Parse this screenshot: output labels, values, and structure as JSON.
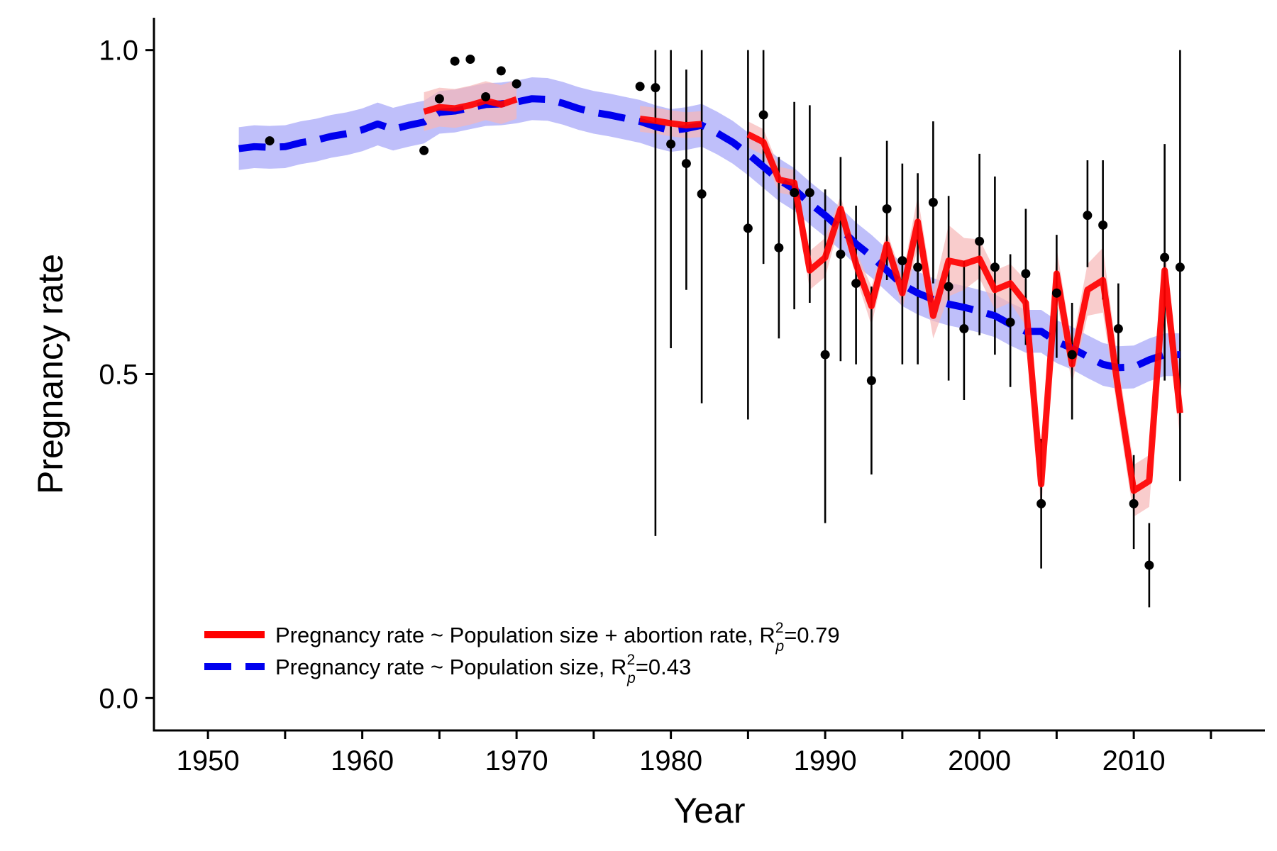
{
  "chart_data": {
    "type": "line",
    "title": "",
    "xlabel": "Year",
    "ylabel": "Pregnancy rate",
    "xlim": [
      1946.5,
      2018.5
    ],
    "ylim": [
      -0.05,
      1.05
    ],
    "x_ticks": [
      1950,
      1960,
      1970,
      1980,
      1990,
      2000,
      2010
    ],
    "x_tick_labels": [
      "1950",
      "1960",
      "1970",
      "1980",
      "1990",
      "2000",
      "2010"
    ],
    "x_minor_ticks": [
      1955,
      1965,
      1975,
      1985,
      1995,
      2005,
      2015
    ],
    "y_ticks": [
      0.0,
      0.5,
      1.0
    ],
    "y_tick_labels": [
      "0.0",
      "0.5",
      "1.0"
    ],
    "grid": false,
    "legend_position": "bottom-left",
    "colors": {
      "red": "#ff0000",
      "red_band": "#f7b7b7",
      "blue": "#0000ee",
      "blue_band": "#aaaaf8",
      "points": "#000000"
    },
    "observed": {
      "points": [
        {
          "x": 1954,
          "y": 0.86
        },
        {
          "x": 1964,
          "y": 0.845
        },
        {
          "x": 1965,
          "y": 0.925
        },
        {
          "x": 1966,
          "y": 0.983
        },
        {
          "x": 1967,
          "y": 0.986
        },
        {
          "x": 1968,
          "y": 0.928
        },
        {
          "x": 1969,
          "y": 0.968
        },
        {
          "x": 1970,
          "y": 0.948
        },
        {
          "x": 1978,
          "y": 0.944
        },
        {
          "x": 1979,
          "y": 0.942,
          "lo": 0.25,
          "hi": 1.0
        },
        {
          "x": 1980,
          "y": 0.855,
          "lo": 0.54,
          "hi": 1.0
        },
        {
          "x": 1981,
          "y": 0.825,
          "lo": 0.63,
          "hi": 0.97
        },
        {
          "x": 1982,
          "y": 0.778,
          "lo": 0.455,
          "hi": 1.0
        },
        {
          "x": 1985,
          "y": 0.725,
          "lo": 0.43,
          "hi": 1.0
        },
        {
          "x": 1986,
          "y": 0.9,
          "lo": 0.67,
          "hi": 1.0
        },
        {
          "x": 1987,
          "y": 0.695,
          "lo": 0.555,
          "hi": 0.835
        },
        {
          "x": 1988,
          "y": 0.78,
          "lo": 0.6,
          "hi": 0.92
        },
        {
          "x": 1989,
          "y": 0.78,
          "lo": 0.61,
          "hi": 0.915
        },
        {
          "x": 1990,
          "y": 0.53,
          "lo": 0.27,
          "hi": 0.785
        },
        {
          "x": 1991,
          "y": 0.685,
          "lo": 0.52,
          "hi": 0.835
        },
        {
          "x": 1992,
          "y": 0.64,
          "lo": 0.515,
          "hi": 0.76
        },
        {
          "x": 1993,
          "y": 0.49,
          "lo": 0.345,
          "hi": 0.635
        },
        {
          "x": 1994,
          "y": 0.755,
          "lo": 0.645,
          "hi": 0.86
        },
        {
          "x": 1995,
          "y": 0.675,
          "lo": 0.515,
          "hi": 0.825
        },
        {
          "x": 1996,
          "y": 0.665,
          "lo": 0.515,
          "hi": 0.81
        },
        {
          "x": 1997,
          "y": 0.765,
          "lo": 0.64,
          "hi": 0.89
        },
        {
          "x": 1998,
          "y": 0.635,
          "lo": 0.49,
          "hi": 0.775
        },
        {
          "x": 1999,
          "y": 0.57,
          "lo": 0.46,
          "hi": 0.675
        },
        {
          "x": 2000,
          "y": 0.705,
          "lo": 0.56,
          "hi": 0.84
        },
        {
          "x": 2001,
          "y": 0.665,
          "lo": 0.53,
          "hi": 0.805
        },
        {
          "x": 2002,
          "y": 0.58,
          "lo": 0.48,
          "hi": 0.685
        },
        {
          "x": 2003,
          "y": 0.655,
          "lo": 0.545,
          "hi": 0.755
        },
        {
          "x": 2004,
          "y": 0.3,
          "lo": 0.2,
          "hi": 0.4
        },
        {
          "x": 2005,
          "y": 0.625,
          "lo": 0.525,
          "hi": 0.715
        },
        {
          "x": 2006,
          "y": 0.53,
          "lo": 0.43,
          "hi": 0.61
        },
        {
          "x": 2007,
          "y": 0.745,
          "lo": 0.665,
          "hi": 0.83
        },
        {
          "x": 2008,
          "y": 0.73,
          "lo": 0.615,
          "hi": 0.83
        },
        {
          "x": 2009,
          "y": 0.57,
          "lo": 0.505,
          "hi": 0.64
        },
        {
          "x": 2010,
          "y": 0.3,
          "lo": 0.23,
          "hi": 0.375
        },
        {
          "x": 2011,
          "y": 0.205,
          "lo": 0.14,
          "hi": 0.27
        },
        {
          "x": 2012,
          "y": 0.68,
          "lo": 0.49,
          "hi": 0.855
        },
        {
          "x": 2013,
          "y": 0.665,
          "lo": 0.335,
          "hi": 1.0
        }
      ]
    },
    "series": [
      {
        "name": "Pregnancy rate ~ Population size, R_p^2=0.43",
        "color": "#0000ee",
        "dashed": true,
        "band_half_width": 0.033,
        "x": [
          1952,
          1953,
          1954,
          1955,
          1956,
          1957,
          1958,
          1959,
          1960,
          1961,
          1962,
          1963,
          1964,
          1965,
          1966,
          1967,
          1968,
          1969,
          1970,
          1971,
          1972,
          1973,
          1974,
          1975,
          1976,
          1977,
          1978,
          1979,
          1980,
          1981,
          1982,
          1983,
          1984,
          1985,
          1986,
          1987,
          1988,
          1989,
          1990,
          1991,
          1992,
          1993,
          1994,
          1995,
          1996,
          1997,
          1998,
          1999,
          2000,
          2001,
          2002,
          2003,
          2004,
          2005,
          2006,
          2007,
          2008,
          2009,
          2010,
          2011,
          2012,
          2013
        ],
        "values": [
          0.848,
          0.851,
          0.85,
          0.851,
          0.857,
          0.861,
          0.867,
          0.871,
          0.877,
          0.886,
          0.878,
          0.884,
          0.889,
          0.904,
          0.906,
          0.911,
          0.916,
          0.917,
          0.92,
          0.925,
          0.924,
          0.918,
          0.91,
          0.904,
          0.9,
          0.895,
          0.89,
          0.882,
          0.876,
          0.879,
          0.884,
          0.872,
          0.858,
          0.84,
          0.82,
          0.8,
          0.785,
          0.764,
          0.745,
          0.724,
          0.701,
          0.682,
          0.66,
          0.638,
          0.625,
          0.615,
          0.608,
          0.603,
          0.597,
          0.59,
          0.577,
          0.566,
          0.566,
          0.55,
          0.54,
          0.527,
          0.515,
          0.51,
          0.511,
          0.522,
          0.53,
          0.53
        ]
      },
      {
        "name": "Pregnancy rate ~ Population size + abortion rate, R_p^2=0.79",
        "color": "#ff0000",
        "dashed": false,
        "segments": [
          {
            "x": [
              1964,
              1965,
              1966,
              1967,
              1968,
              1969,
              1970
            ],
            "values": [
              0.905,
              0.912,
              0.91,
              0.915,
              0.922,
              0.916,
              0.924
            ]
          },
          {
            "x": [
              1978,
              1979,
              1980,
              1981,
              1982
            ],
            "values": [
              0.894,
              0.891,
              0.887,
              0.884,
              0.886
            ]
          },
          {
            "x": [
              1985,
              1986,
              1987,
              1988,
              1989,
              1990,
              1991,
              1992,
              1993,
              1994,
              1995,
              1996,
              1997,
              1998,
              1999,
              2000,
              2001,
              2002,
              2003,
              2004,
              2005,
              2006,
              2007,
              2008,
              2009,
              2010,
              2011,
              2012,
              2013
            ],
            "values": [
              0.87,
              0.858,
              0.8,
              0.795,
              0.66,
              0.68,
              0.755,
              0.67,
              0.605,
              0.7,
              0.625,
              0.735,
              0.59,
              0.675,
              0.67,
              0.678,
              0.63,
              0.64,
              0.61,
              0.33,
              0.655,
              0.515,
              0.63,
              0.645,
              0.475,
              0.32,
              0.335,
              0.66,
              0.44
            ]
          }
        ],
        "band_segments": [
          {
            "x": [
              1964,
              1965,
              1966,
              1967,
              1968,
              1969,
              1970
            ],
            "half_width": [
              0.03,
              0.03,
              0.03,
              0.03,
              0.03,
              0.03,
              0.03
            ]
          },
          {
            "x": [
              1978,
              1979,
              1980,
              1981,
              1982
            ],
            "half_width": [
              0.02,
              0.02,
              0.02,
              0.02,
              0.02
            ]
          },
          {
            "x": [
              1985,
              1986,
              1987,
              1988,
              1989,
              1990,
              1991,
              1992,
              1993,
              1994,
              1995,
              1996,
              1997,
              1998,
              1999,
              2000,
              2001,
              2002,
              2003,
              2004,
              2005,
              2006,
              2007,
              2008,
              2009,
              2010,
              2011,
              2012,
              2013
            ],
            "half_width": [
              0.02,
              0.02,
              0.02,
              0.02,
              0.03,
              0.03,
              0.02,
              0.02,
              0.03,
              0.02,
              0.025,
              0.04,
              0.035,
              0.055,
              0.04,
              0.03,
              0.03,
              0.03,
              0.035,
              0.04,
              0.04,
              0.03,
              0.04,
              0.05,
              0.04,
              0.04,
              0.04,
              0.04,
              0.04
            ]
          }
        ]
      }
    ],
    "legend": [
      {
        "text_main": "Pregnancy rate ~ Population size + abortion rate, R",
        "sub": "p",
        "sup": "2",
        "tail": "=0.79",
        "color": "#ff0000",
        "dashed": false
      },
      {
        "text_main": "Pregnancy rate ~ Population size, R",
        "sub": "p",
        "sup": "2",
        "tail": "=0.43",
        "color": "#0000ee",
        "dashed": true
      }
    ]
  }
}
